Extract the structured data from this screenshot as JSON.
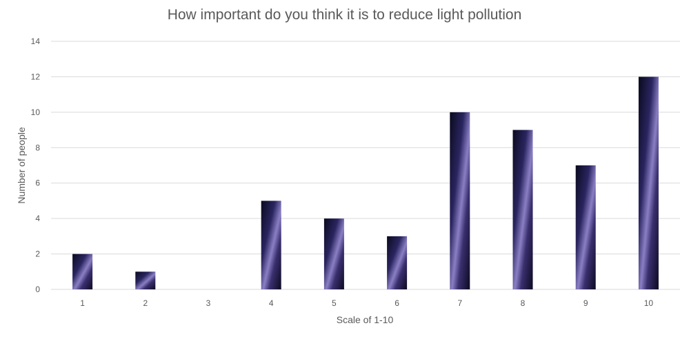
{
  "chart_data": {
    "type": "bar",
    "title": "How important do you think it is to reduce light pollution",
    "xlabel": "Scale of 1-10",
    "ylabel": "Number of people",
    "categories": [
      "1",
      "2",
      "3",
      "4",
      "5",
      "6",
      "7",
      "8",
      "9",
      "10"
    ],
    "values": [
      2,
      1,
      0,
      5,
      4,
      3,
      10,
      9,
      7,
      12
    ],
    "ylim": [
      0,
      14
    ],
    "yticks": [
      "0",
      "2",
      "4",
      "6",
      "8",
      "10",
      "12",
      "14"
    ],
    "grid": true,
    "legend": "none",
    "colors": {
      "bar_dark": "#0a0a1e",
      "bar_mid": "#2a2560",
      "bar_glow": "#8a7fc4",
      "gridline": "#d9d9d9",
      "text": "#595959"
    }
  }
}
